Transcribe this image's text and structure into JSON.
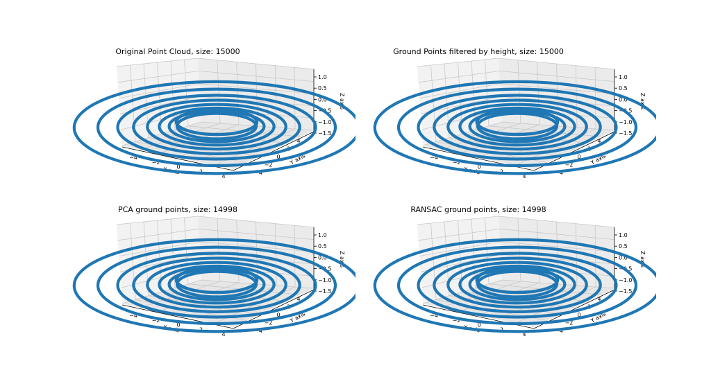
{
  "figure": {
    "panel_background": "#ffffff",
    "pane_fill": "#f2f2f2",
    "grid_color": "#c8c8c8",
    "ring_color": "#1f77b4"
  },
  "chart_data": [
    {
      "type": "scatter",
      "projection": "3d",
      "title": "Original Point Cloud, size: 15000",
      "xlabel": "X axis",
      "ylabel": "Y axis",
      "zlabel": "Z axis",
      "xticks": [
        "−4",
        "−2",
        "0",
        "2",
        "4"
      ],
      "yticks": [
        "−4",
        "−2",
        "0",
        "2",
        "4"
      ],
      "zticks": [
        "−1.5",
        "−1.0",
        "−0.5",
        "0.0",
        "0.5",
        "1.0"
      ],
      "xlim": [
        -5,
        5
      ],
      "ylim": [
        -5,
        5
      ],
      "zlim": [
        -1.5,
        1.0
      ],
      "series": [
        {
          "color": "#1f77b4",
          "rings": [
            {
              "radius": 2.0,
              "z": -1.2
            },
            {
              "radius": 2.4,
              "z": -1.25
            },
            {
              "radius": 2.9,
              "z": -1.3
            },
            {
              "radius": 3.5,
              "z": -1.35
            },
            {
              "radius": 4.2,
              "z": -1.4
            },
            {
              "radius": 5.0,
              "z": -1.45
            },
            {
              "radius": 6.0,
              "z": -1.5
            },
            {
              "radius": 7.2,
              "z": -1.55
            }
          ]
        }
      ],
      "grid": true
    },
    {
      "type": "scatter",
      "projection": "3d",
      "title": "Ground Points filtered by height, size: 15000",
      "xlabel": "X axis",
      "ylabel": "Y axis",
      "zlabel": "Z axis",
      "xticks": [
        "−4",
        "−2",
        "0",
        "2",
        "4"
      ],
      "yticks": [
        "−4",
        "−2",
        "0",
        "2",
        "4"
      ],
      "zticks": [
        "−1.5",
        "−1.0",
        "−0.5",
        "0.0",
        "0.5",
        "1.0"
      ],
      "xlim": [
        -5,
        5
      ],
      "ylim": [
        -5,
        5
      ],
      "zlim": [
        -1.5,
        1.0
      ],
      "series": [
        {
          "color": "#1f77b4",
          "rings": [
            {
              "radius": 2.0,
              "z": -1.2
            },
            {
              "radius": 2.4,
              "z": -1.25
            },
            {
              "radius": 2.9,
              "z": -1.3
            },
            {
              "radius": 3.5,
              "z": -1.35
            },
            {
              "radius": 4.2,
              "z": -1.4
            },
            {
              "radius": 5.0,
              "z": -1.45
            },
            {
              "radius": 6.0,
              "z": -1.5
            },
            {
              "radius": 7.2,
              "z": -1.55
            }
          ]
        }
      ],
      "grid": true
    },
    {
      "type": "scatter",
      "projection": "3d",
      "title": "PCA ground points, size: 14998",
      "xlabel": "X axis",
      "ylabel": "Y axis",
      "zlabel": "Z axis",
      "xticks": [
        "−4",
        "−2",
        "0",
        "2",
        "4"
      ],
      "yticks": [
        "−4",
        "−2",
        "0",
        "2",
        "4"
      ],
      "zticks": [
        "−1.5",
        "−1.0",
        "−0.5",
        "0.0",
        "0.5",
        "1.0"
      ],
      "xlim": [
        -5,
        5
      ],
      "ylim": [
        -5,
        5
      ],
      "zlim": [
        -1.5,
        1.0
      ],
      "series": [
        {
          "color": "#1f77b4",
          "rings": [
            {
              "radius": 2.0,
              "z": -1.2
            },
            {
              "radius": 2.4,
              "z": -1.25
            },
            {
              "radius": 2.9,
              "z": -1.3
            },
            {
              "radius": 3.5,
              "z": -1.35
            },
            {
              "radius": 4.2,
              "z": -1.4
            },
            {
              "radius": 5.0,
              "z": -1.45
            },
            {
              "radius": 6.0,
              "z": -1.5
            },
            {
              "radius": 7.2,
              "z": -1.55
            }
          ]
        }
      ],
      "grid": true
    },
    {
      "type": "scatter",
      "projection": "3d",
      "title": "RANSAC ground points, size: 14998",
      "xlabel": "X axis",
      "ylabel": "Y axis",
      "zlabel": "Z axis",
      "xticks": [
        "−4",
        "−2",
        "0",
        "2",
        "4"
      ],
      "yticks": [
        "−4",
        "−2",
        "0",
        "2",
        "4"
      ],
      "zticks": [
        "−1.5",
        "−1.0",
        "−0.5",
        "0.0",
        "0.5",
        "1.0"
      ],
      "xlim": [
        -5,
        5
      ],
      "ylim": [
        -5,
        5
      ],
      "zlim": [
        -1.5,
        1.0
      ],
      "series": [
        {
          "color": "#1f77b4",
          "rings": [
            {
              "radius": 2.0,
              "z": -1.2
            },
            {
              "radius": 2.4,
              "z": -1.25
            },
            {
              "radius": 2.9,
              "z": -1.3
            },
            {
              "radius": 3.5,
              "z": -1.35
            },
            {
              "radius": 4.2,
              "z": -1.4
            },
            {
              "radius": 5.0,
              "z": -1.45
            },
            {
              "radius": 6.0,
              "z": -1.5
            },
            {
              "radius": 7.2,
              "z": -1.55
            }
          ]
        }
      ],
      "grid": true
    }
  ]
}
